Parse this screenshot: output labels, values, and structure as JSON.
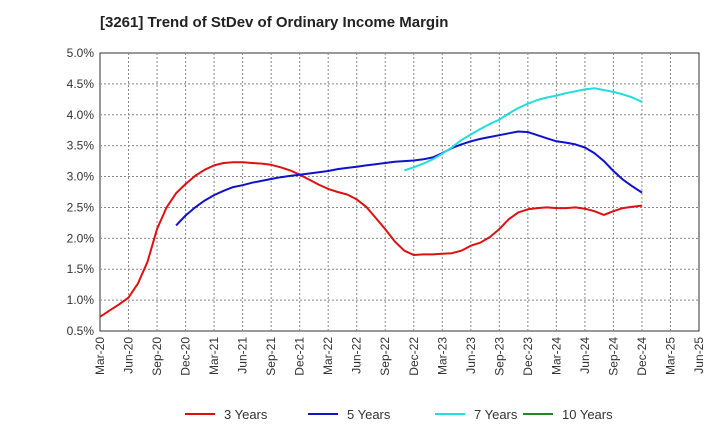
{
  "chart_data": {
    "type": "line",
    "title": "[3261]  Trend of StDev of Ordinary Income Margin",
    "xlabel": "",
    "ylabel": "",
    "x_tick_labels": [
      "Mar-20",
      "Jun-20",
      "Sep-20",
      "Dec-20",
      "Mar-21",
      "Jun-21",
      "Sep-21",
      "Dec-21",
      "Mar-22",
      "Jun-22",
      "Sep-22",
      "Dec-22",
      "Mar-23",
      "Jun-23",
      "Sep-23",
      "Dec-23",
      "Mar-24",
      "Jun-24",
      "Sep-24",
      "Dec-24",
      "Mar-25",
      "Jun-25"
    ],
    "y_tick_labels": [
      "0.5%",
      "1.0%",
      "1.5%",
      "2.0%",
      "2.5%",
      "3.0%",
      "3.5%",
      "4.0%",
      "4.5%",
      "5.0%"
    ],
    "ylim": [
      0.5,
      5.0
    ],
    "grid": true,
    "legend_position": "bottom",
    "series": [
      {
        "name": "3 Years",
        "color": "#dd1111",
        "x": [
          0,
          1,
          2,
          3,
          4,
          5,
          6,
          7,
          8,
          9,
          10,
          11,
          12,
          13,
          14,
          15,
          16,
          17,
          18,
          19,
          20,
          21,
          22,
          23,
          24,
          25,
          26,
          27,
          28,
          29,
          30,
          31,
          32,
          33,
          34,
          35,
          36,
          37,
          38,
          39,
          40,
          41,
          42,
          43,
          44,
          45,
          46,
          47,
          48,
          49,
          50,
          51,
          52,
          53,
          54,
          55,
          56,
          57,
          58,
          59,
          60
        ],
        "values": [
          0.73,
          0.83,
          0.93,
          1.04,
          1.27,
          1.62,
          2.15,
          2.5,
          2.73,
          2.88,
          3.01,
          3.11,
          3.18,
          3.22,
          3.23,
          3.23,
          3.22,
          3.21,
          3.19,
          3.15,
          3.1,
          3.03,
          2.95,
          2.87,
          2.8,
          2.75,
          2.71,
          2.63,
          2.51,
          2.33,
          2.15,
          1.95,
          1.8,
          1.73,
          1.74,
          1.74,
          1.75,
          1.76,
          1.8,
          1.88,
          1.93,
          2.02,
          2.15,
          2.31,
          2.42,
          2.47,
          2.49,
          2.5,
          2.49,
          2.49,
          2.5,
          2.48,
          2.44,
          2.38,
          2.44,
          2.49,
          2.51,
          2.53,
          null,
          null,
          null
        ]
      },
      {
        "name": "5 Years",
        "color": "#1111cc",
        "x": [
          8,
          9,
          10,
          11,
          12,
          13,
          14,
          15,
          16,
          17,
          18,
          19,
          20,
          21,
          22,
          23,
          24,
          25,
          26,
          27,
          28,
          29,
          30,
          31,
          32,
          33,
          34,
          35,
          36,
          37,
          38,
          39,
          40,
          41,
          42,
          43,
          44,
          45,
          46,
          47,
          48,
          49,
          50,
          51,
          52,
          53,
          54,
          55,
          56,
          57
        ],
        "values": [
          2.21,
          2.37,
          2.5,
          2.61,
          2.7,
          2.77,
          2.83,
          2.86,
          2.9,
          2.93,
          2.96,
          2.99,
          3.01,
          3.03,
          3.05,
          3.07,
          3.09,
          3.12,
          3.14,
          3.16,
          3.18,
          3.2,
          3.22,
          3.24,
          3.25,
          3.26,
          3.28,
          3.31,
          3.38,
          3.46,
          3.52,
          3.57,
          3.61,
          3.64,
          3.67,
          3.7,
          3.73,
          3.72,
          3.67,
          3.62,
          3.57,
          3.55,
          3.52,
          3.47,
          3.38,
          3.25,
          3.09,
          2.95,
          2.84,
          2.74
        ]
      },
      {
        "name": "7 Years",
        "color": "#22dddd",
        "x": [
          32,
          33,
          34,
          35,
          36,
          37,
          38,
          39,
          40,
          41,
          42,
          43,
          44,
          45,
          46,
          47,
          48,
          49,
          50,
          51,
          52,
          53,
          54,
          55,
          56,
          57
        ],
        "values": [
          3.1,
          3.15,
          3.21,
          3.28,
          3.37,
          3.47,
          3.59,
          3.68,
          3.77,
          3.85,
          3.92,
          4.02,
          4.11,
          4.18,
          4.24,
          4.28,
          4.31,
          4.35,
          4.38,
          4.41,
          4.43,
          4.4,
          4.37,
          4.33,
          4.28,
          4.21
        ]
      },
      {
        "name": "10 Years",
        "color": "#228822",
        "x": [],
        "values": []
      }
    ]
  }
}
